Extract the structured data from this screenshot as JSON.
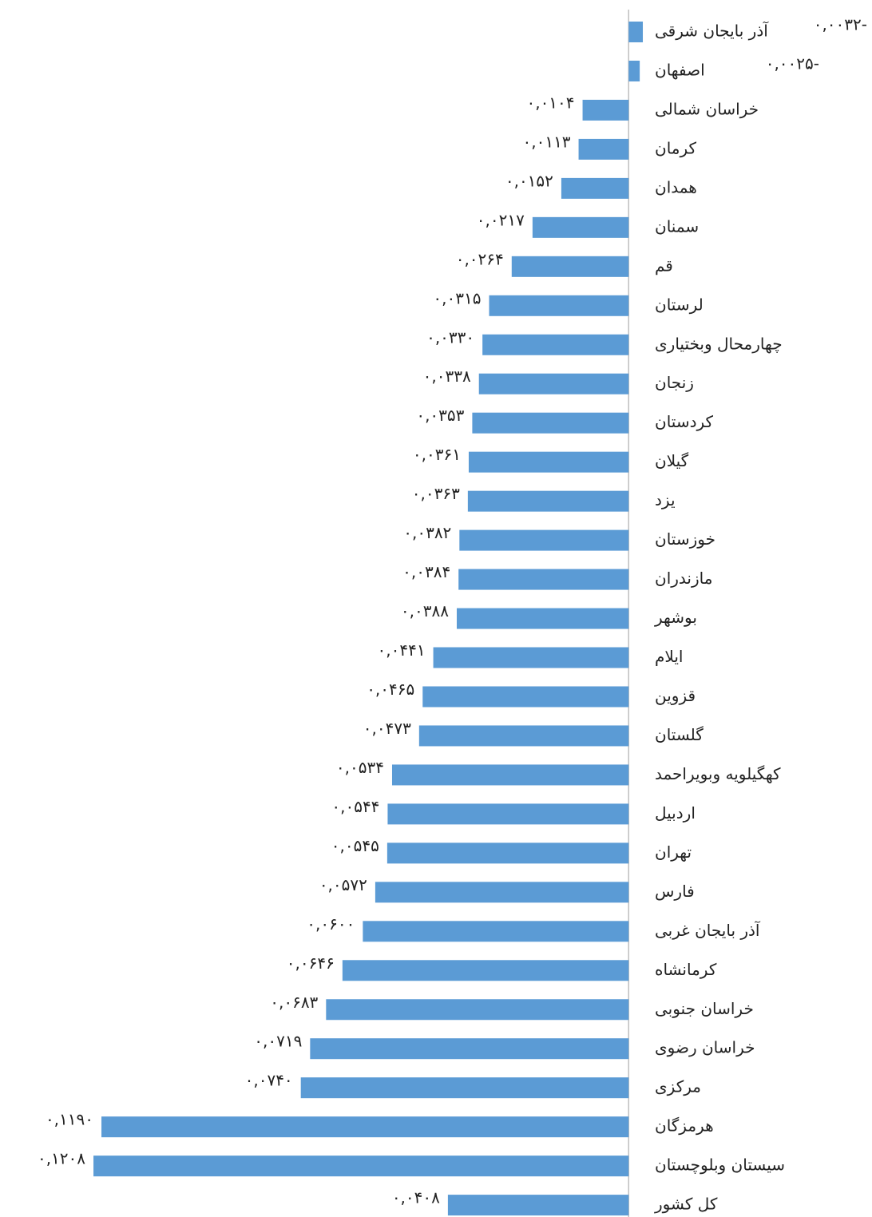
{
  "chart_data": {
    "type": "hbar",
    "reversed": true,
    "color": "#5b9bd5",
    "xlim": [
      -0.005,
      0.13
    ],
    "categories": [
      "آذر بایجان شرقی",
      "اصفهان",
      "خراسان شمالی",
      "کرمان",
      "همدان",
      "سمنان",
      "قم",
      "لرستان",
      "چهارمحال وبختیاری",
      "زنجان",
      "کردستان",
      "گیلان",
      "یزد",
      "خوزستان",
      "مازندران",
      "بوشهر",
      "ایلام",
      "قزوین",
      "گلستان",
      "کهگیلویه وبویراحمد",
      "اردبیل",
      "تهران",
      "فارس",
      "آذر بایجان غربی",
      "کرمانشاه",
      "خراسان جنوبی",
      "خراسان رضوی",
      "مرکزی",
      "هرمزگان",
      "سیستان وبلوچستان",
      "کل کشور"
    ],
    "values": [
      -0.0032,
      -0.0025,
      0.0104,
      0.0113,
      0.0152,
      0.0217,
      0.0264,
      0.0315,
      0.033,
      0.0338,
      0.0353,
      0.0361,
      0.0363,
      0.0382,
      0.0384,
      0.0388,
      0.0441,
      0.0465,
      0.0473,
      0.0534,
      0.0544,
      0.0545,
      0.0572,
      0.06,
      0.0646,
      0.0683,
      0.0719,
      0.074,
      0.119,
      0.1208,
      0.0408
    ],
    "value_labels": [
      "۰,۰۰۳۲-",
      "۰,۰۰۲۵-",
      "۰,۰۱۰۴",
      "۰,۰۱۱۳",
      "۰,۰۱۵۲",
      "۰,۰۲۱۷",
      "۰,۰۲۶۴",
      "۰,۰۳۱۵",
      "۰,۰۳۳۰",
      "۰,۰۳۳۸",
      "۰,۰۳۵۳",
      "۰,۰۳۶۱",
      "۰,۰۳۶۳",
      "۰,۰۳۸۲",
      "۰,۰۳۸۴",
      "۰,۰۳۸۸",
      "۰,۰۴۴۱",
      "۰,۰۴۶۵",
      "۰,۰۴۷۳",
      "۰,۰۵۳۴",
      "۰,۰۵۴۴",
      "۰,۰۵۴۵",
      "۰,۰۵۷۲",
      "۰,۰۶۰۰",
      "۰,۰۶۴۶",
      "۰,۰۶۸۳",
      "۰,۰۷۱۹",
      "۰,۰۷۴۰",
      "۰,۱۱۹۰",
      "۰,۱۲۰۸",
      "۰,۰۴۰۸"
    ]
  }
}
